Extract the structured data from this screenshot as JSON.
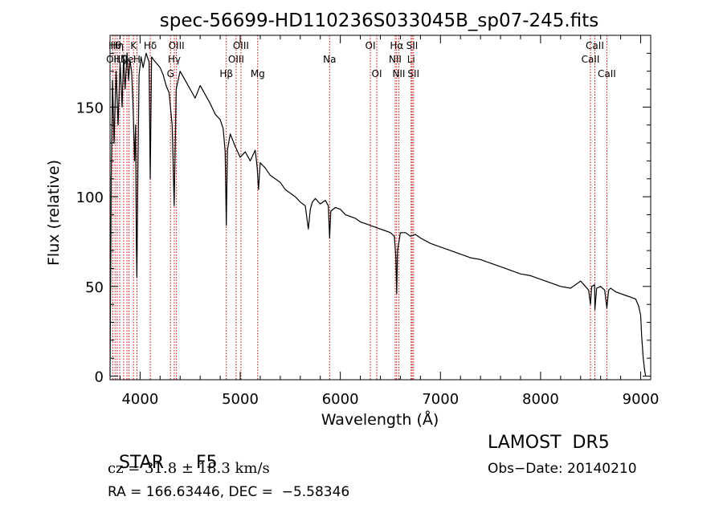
{
  "chart_data": {
    "type": "line",
    "title": "spec-56699-HD110236S033045B_sp07-245.fits",
    "xlabel": "Wavelength (Å)",
    "ylabel": "Flux (relative)",
    "xlim": [
      3700,
      9100
    ],
    "ylim": [
      -2,
      190
    ],
    "xticks": [
      4000,
      5000,
      6000,
      7000,
      8000,
      9000
    ],
    "yticks": [
      0,
      50,
      100,
      150
    ],
    "grid": false,
    "line_color": "#000000",
    "marker_color": "#cc0000",
    "series": [
      {
        "x": [
          3700,
          3712,
          3725,
          3740,
          3760,
          3780,
          3800,
          3820,
          3835,
          3850,
          3870,
          3885,
          3900,
          3915,
          3930,
          3945,
          3955,
          3962,
          3968,
          3975,
          3990,
          4010,
          4030,
          4060,
          4090,
          4101,
          4115,
          4140,
          4170,
          4200,
          4230,
          4260,
          4290,
          4320,
          4340,
          4350,
          4360,
          4400,
          4450,
          4500,
          4550,
          4600,
          4650,
          4700,
          4750,
          4800,
          4830,
          4850,
          4861,
          4872,
          4900,
          4950,
          5000,
          5050,
          5100,
          5150,
          5170,
          5183,
          5200,
          5250,
          5300,
          5350,
          5400,
          5450,
          5500,
          5550,
          5600,
          5650,
          5680,
          5700,
          5720,
          5750,
          5800,
          5850,
          5880,
          5893,
          5905,
          5950,
          6000,
          6050,
          6100,
          6150,
          6200,
          6250,
          6300,
          6350,
          6400,
          6450,
          6500,
          6540,
          6555,
          6563,
          6572,
          6600,
          6650,
          6700,
          6750,
          6800,
          6900,
          7000,
          7100,
          7200,
          7300,
          7400,
          7500,
          7600,
          7700,
          7800,
          7900,
          8000,
          8100,
          8200,
          8300,
          8400,
          8480,
          8498,
          8510,
          8540,
          8542,
          8560,
          8600,
          8640,
          8662,
          8680,
          8700,
          8750,
          8800,
          8850,
          8900,
          8950,
          8980,
          9000,
          9010,
          9025,
          9040,
          9050
        ],
        "y": [
          0,
          112,
          165,
          130,
          170,
          140,
          175,
          150,
          178,
          160,
          180,
          165,
          176,
          170,
          150,
          120,
          140,
          75,
          55,
          100,
          168,
          178,
          172,
          180,
          175,
          110,
          178,
          176,
          174,
          172,
          168,
          162,
          158,
          140,
          95,
          125,
          160,
          170,
          165,
          160,
          155,
          162,
          157,
          152,
          146,
          143,
          138,
          125,
          84,
          126,
          135,
          128,
          122,
          125,
          120,
          126,
          116,
          104,
          119,
          116,
          112,
          110,
          108,
          104,
          102,
          100,
          97,
          95,
          82,
          93,
          97,
          99,
          96,
          98,
          95,
          77,
          92,
          94,
          93,
          90,
          89,
          88,
          86,
          85,
          84,
          83,
          82,
          81,
          80,
          78,
          66,
          46,
          70,
          80,
          80,
          78,
          79,
          77,
          74,
          72,
          70,
          68,
          66,
          65,
          63,
          61,
          59,
          57,
          56,
          54,
          52,
          50,
          49,
          53,
          48,
          40,
          50,
          51,
          37,
          49,
          50,
          48,
          38,
          48,
          49,
          47,
          46,
          45,
          44,
          43,
          39,
          34,
          22,
          10,
          3,
          0
        ]
      }
    ],
    "line_markers": [
      {
        "x": 3727,
        "label": "OII",
        "row": 1
      },
      {
        "x": 3750,
        "label": "Hθ",
        "row": 0
      },
      {
        "x": 3771,
        "label": "Hη",
        "row": 0
      },
      {
        "x": 3797,
        "label": "Hζ",
        "row": 1
      },
      {
        "x": 3835,
        "label": "",
        "row": 1
      },
      {
        "x": 3869,
        "label": "Ne",
        "row": 1
      },
      {
        "x": 3889,
        "label": "",
        "row": 2
      },
      {
        "x": 3934,
        "label": "K",
        "row": 0
      },
      {
        "x": 3968,
        "label": "H",
        "row": 1
      },
      {
        "x": 4102,
        "label": "Hδ",
        "row": 0
      },
      {
        "x": 4304,
        "label": "G",
        "row": 2
      },
      {
        "x": 4341,
        "label": "Hγ",
        "row": 1
      },
      {
        "x": 4363,
        "label": "OIII",
        "row": 0
      },
      {
        "x": 4861,
        "label": "Hβ",
        "row": 2
      },
      {
        "x": 4959,
        "label": "OIII",
        "row": 1
      },
      {
        "x": 5007,
        "label": "OIII",
        "row": 0
      },
      {
        "x": 5175,
        "label": "Mg",
        "row": 2
      },
      {
        "x": 5893,
        "label": "Na",
        "row": 1
      },
      {
        "x": 6300,
        "label": "OI",
        "row": 0
      },
      {
        "x": 6364,
        "label": "OI",
        "row": 2
      },
      {
        "x": 6548,
        "label": "NII",
        "row": 1
      },
      {
        "x": 6563,
        "label": "Hα",
        "row": 0
      },
      {
        "x": 6584,
        "label": "NII",
        "row": 2
      },
      {
        "x": 6707,
        "label": "Li",
        "row": 1
      },
      {
        "x": 6717,
        "label": "SII",
        "row": 0
      },
      {
        "x": 6731,
        "label": "SII",
        "row": 2
      },
      {
        "x": 8498,
        "label": "CaII",
        "row": 1
      },
      {
        "x": 8542,
        "label": "CaII",
        "row": 0
      },
      {
        "x": 8662,
        "label": "CaII",
        "row": 2
      }
    ]
  },
  "info": {
    "class_label": "STAR",
    "subclass": "F5",
    "survey": "LAMOST  DR5",
    "cz": "cz = 31.8 ± 18.3 km/s",
    "obs_date": "Obs−Date: 20140210",
    "radec": "RA = 166.63446, DEC =  −5.58346"
  }
}
